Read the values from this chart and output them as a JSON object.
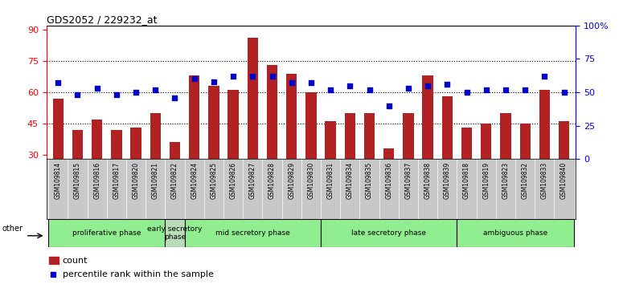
{
  "title": "GDS2052 / 229232_at",
  "categories": [
    "GSM109814",
    "GSM109815",
    "GSM109816",
    "GSM109817",
    "GSM109820",
    "GSM109821",
    "GSM109822",
    "GSM109824",
    "GSM109825",
    "GSM109826",
    "GSM109827",
    "GSM109828",
    "GSM109829",
    "GSM109830",
    "GSM109831",
    "GSM109834",
    "GSM109835",
    "GSM109836",
    "GSM109837",
    "GSM109838",
    "GSM109839",
    "GSM109818",
    "GSM109819",
    "GSM109823",
    "GSM109832",
    "GSM109833",
    "GSM109840"
  ],
  "bar_values": [
    57,
    42,
    47,
    42,
    43,
    50,
    36,
    68,
    63,
    61,
    86,
    73,
    69,
    60,
    46,
    50,
    50,
    33,
    50,
    68,
    58,
    43,
    45,
    50,
    45,
    61,
    46
  ],
  "dot_values": [
    57,
    48,
    53,
    48,
    50,
    52,
    46,
    60,
    58,
    62,
    62,
    62,
    57,
    57,
    52,
    55,
    52,
    40,
    53,
    55,
    56,
    50,
    52,
    52,
    52,
    62,
    50
  ],
  "phases": [
    {
      "label": "proliferative phase",
      "start": 0,
      "end": 6,
      "color": "#90EE90"
    },
    {
      "label": "early secretory\nphase",
      "start": 6,
      "end": 7,
      "color": "#b8ddb8"
    },
    {
      "label": "mid secretory phase",
      "start": 7,
      "end": 14,
      "color": "#90EE90"
    },
    {
      "label": "late secretory phase",
      "start": 14,
      "end": 21,
      "color": "#90EE90"
    },
    {
      "label": "ambiguous phase",
      "start": 21,
      "end": 27,
      "color": "#90EE90"
    }
  ],
  "ylim_left": [
    28,
    92
  ],
  "ylim_right": [
    0,
    100
  ],
  "yticks_left": [
    30,
    45,
    60,
    75,
    90
  ],
  "yticks_right": [
    0,
    25,
    50,
    75,
    100
  ],
  "grid_lines": [
    45,
    60,
    75
  ],
  "bar_color": "#B22222",
  "dot_color": "#0000CD",
  "tick_bg_color": "#C8C8C8",
  "chart_bg_color": "#FFFFFF"
}
